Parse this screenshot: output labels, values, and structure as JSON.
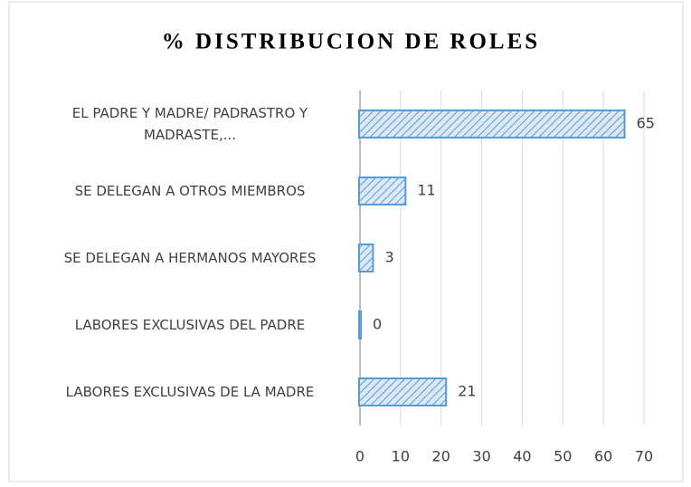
{
  "chart_data": {
    "type": "bar",
    "orientation": "horizontal",
    "title": "% DISTRIBUCION DE ROLES",
    "categories": [
      "EL PADRE Y MADRE/ PADRASTRO Y MADRASTE,...",
      "SE DELEGAN A OTROS MIEMBROS",
      "SE DELEGAN A HERMANOS MAYORES",
      "LABORES EXCLUSIVAS DEL PADRE",
      "LABORES EXCLUSIVAS DE LA MADRE"
    ],
    "values": [
      65,
      11,
      3,
      0,
      21
    ],
    "color": "#5b9bd5",
    "xlim": [
      0,
      70
    ],
    "xticks": [
      0,
      10,
      20,
      30,
      40,
      50,
      60,
      70
    ],
    "grid": true
  }
}
